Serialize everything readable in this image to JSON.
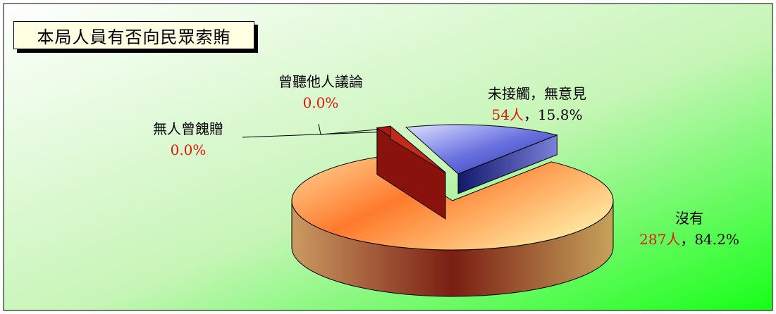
{
  "chart_data": {
    "type": "pie",
    "title": "本局人員有否向民眾索賄",
    "slices": [
      {
        "name": "沒有",
        "count": "287人",
        "sep": "，",
        "pct": "84.2%",
        "value": 84.2,
        "color": "#ff8a3a"
      },
      {
        "name": "未接觸，無意見",
        "count": "54人",
        "sep": "，",
        "pct": "15.8%",
        "value": 15.8,
        "color": "#5f6bd8"
      },
      {
        "name": "無人曾餽贈",
        "pct": "0.0%",
        "value": 0.0,
        "color": "#b0170f"
      },
      {
        "name": "曾聽他人議論",
        "pct": "0.0%",
        "value": 0.0,
        "color": "#c22a1a"
      }
    ],
    "colors": {
      "background_top": "#ffffff",
      "background_bottom": "#1aff1a",
      "label_red": "#e4170c"
    }
  }
}
